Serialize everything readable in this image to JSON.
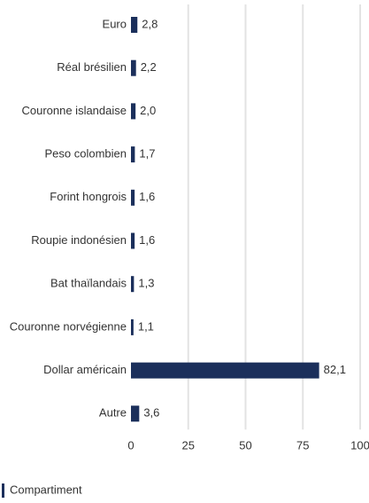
{
  "chart_data": {
    "type": "hbar",
    "categories": [
      "Euro",
      "Réal brésilien",
      "Couronne islandaise",
      "Peso colombien",
      "Forint hongrois",
      "Roupie indonésien",
      "Bat thaïlandais",
      "Couronne norvégienne",
      "Dollar américain",
      "Autre"
    ],
    "series": [
      {
        "name": "Compartiment",
        "color": "#1b2f5b",
        "values": [
          2.8,
          2.2,
          2.0,
          1.7,
          1.6,
          1.6,
          1.3,
          1.1,
          82.1,
          3.6
        ],
        "value_labels": [
          "2,8",
          "2,2",
          "2,0",
          "1,7",
          "1,6",
          "1,6",
          "1,3",
          "1,1",
          "82,1",
          "3,6"
        ]
      }
    ],
    "xlim": [
      0,
      100
    ],
    "xticks": [
      0,
      25,
      50,
      75,
      100
    ],
    "grid": true,
    "legend": "bottom-left"
  }
}
